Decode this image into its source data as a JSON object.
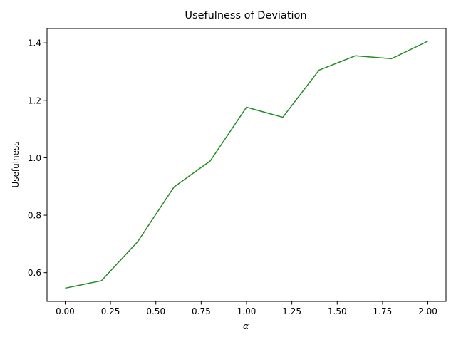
{
  "chart_data": {
    "type": "line",
    "title": "Usefulness of Deviation",
    "xlabel": "α",
    "ylabel": "Usefulness",
    "xlim": [
      -0.1,
      2.1
    ],
    "ylim": [
      0.5,
      1.45
    ],
    "xticks": [
      0.0,
      0.25,
      0.5,
      0.75,
      1.0,
      1.25,
      1.5,
      1.75,
      2.0
    ],
    "xtick_labels": [
      "0.00",
      "0.25",
      "0.50",
      "0.75",
      "1.00",
      "1.25",
      "1.50",
      "1.75",
      "2.00"
    ],
    "yticks": [
      0.6,
      0.8,
      1.0,
      1.2,
      1.4
    ],
    "ytick_labels": [
      "0.6",
      "0.8",
      "1.0",
      "1.2",
      "1.4"
    ],
    "grid": false,
    "series": [
      {
        "color": "#228b22",
        "x": [
          0.0,
          0.2,
          0.4,
          0.6,
          0.8,
          1.0,
          1.2,
          1.4,
          1.6,
          1.8,
          2.0
        ],
        "y": [
          0.546,
          0.572,
          0.708,
          0.898,
          0.989,
          1.176,
          1.141,
          1.305,
          1.355,
          1.345,
          1.406
        ]
      }
    ]
  }
}
